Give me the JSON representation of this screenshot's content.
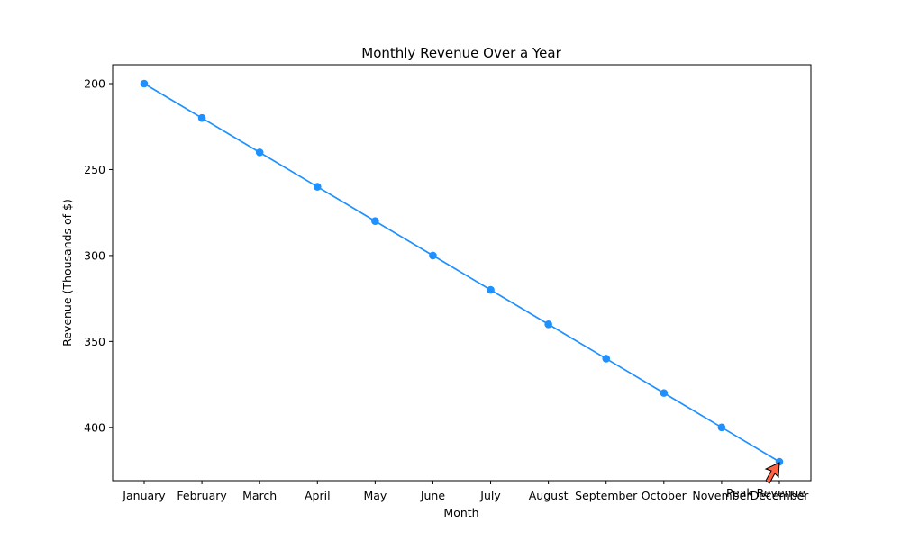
{
  "chart_data": {
    "type": "line",
    "title": "Monthly Revenue Over a Year",
    "xlabel": "Month",
    "ylabel": "Revenue (Thousands of $)",
    "categories": [
      "January",
      "February",
      "March",
      "April",
      "May",
      "June",
      "July",
      "August",
      "September",
      "October",
      "November",
      "December"
    ],
    "series": [
      {
        "values": [
          200,
          220,
          240,
          260,
          280,
          300,
          320,
          340,
          360,
          380,
          400,
          420
        ]
      }
    ],
    "ylim": [
      431,
      189
    ],
    "y_inverted": true,
    "yticks": [
      200,
      250,
      300,
      350,
      400
    ],
    "grid": false,
    "line_color": "#1e90ff",
    "annotation": {
      "text": "Peak Revenue",
      "category": "December",
      "value": 420,
      "arrow_color": "#ff6347"
    }
  }
}
